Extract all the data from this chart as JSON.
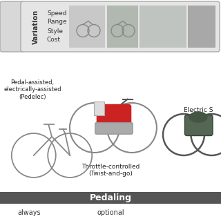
{
  "background_color": "#f0f0f0",
  "top_box_bg": "#e5e5e5",
  "top_box_border": "#aaaaaa",
  "top_left_empty_box_bg": "#d8d8d8",
  "variation_text": "Variation",
  "variation_attrs": [
    "Speed",
    "Range",
    "Style",
    "Cost"
  ],
  "pedaling_bar_color": "#555555",
  "pedaling_text": "Pedaling",
  "pedaling_text_color": "#ffffff",
  "always_text": "always",
  "optional_text": "optional",
  "pedelec_label": "Pedal-assisted,\nelectrically-assisted\n(Pedelec)",
  "throttle_label": "Throttle-controlled\n(Twist-and-go)",
  "electric_label": "Electric S",
  "white_bg": "#ffffff"
}
